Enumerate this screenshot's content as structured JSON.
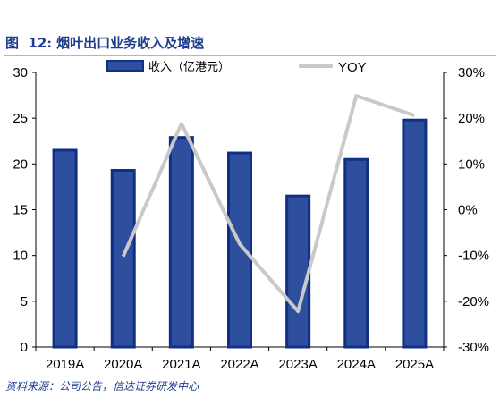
{
  "figure": {
    "label": "图",
    "number": "12",
    "title": "烟叶出口业务收入及增速",
    "source": "资料来源：公司公告，信达证券研发中心"
  },
  "colors": {
    "bar_fill": "#2e4f9e",
    "bar_stroke": "#102f86",
    "line": "#c9c9c9",
    "title": "#1f3d8f"
  },
  "chart_data": {
    "type": "bar",
    "categories": [
      "2019A",
      "2020A",
      "2021A",
      "2022A",
      "2023A",
      "2024A",
      "2025A"
    ],
    "series": [
      {
        "name": "收入（亿港元）",
        "type": "bar",
        "axis": "left",
        "values": [
          21.5,
          19.3,
          22.9,
          21.2,
          16.5,
          20.5,
          24.8
        ]
      },
      {
        "name": "YOY",
        "type": "line",
        "axis": "right",
        "values": [
          null,
          -10.2,
          18.8,
          -7.5,
          -22.2,
          24.9,
          20.6
        ]
      }
    ],
    "ylim": [
      0,
      30
    ],
    "yticks": [
      0,
      5,
      10,
      15,
      20,
      25,
      30
    ],
    "y2lim": [
      -30,
      30
    ],
    "y2ticks": [
      "-30%",
      "-20%",
      "-10%",
      "0%",
      "10%",
      "20%",
      "30%"
    ],
    "legend_position": "top",
    "grid": false
  }
}
